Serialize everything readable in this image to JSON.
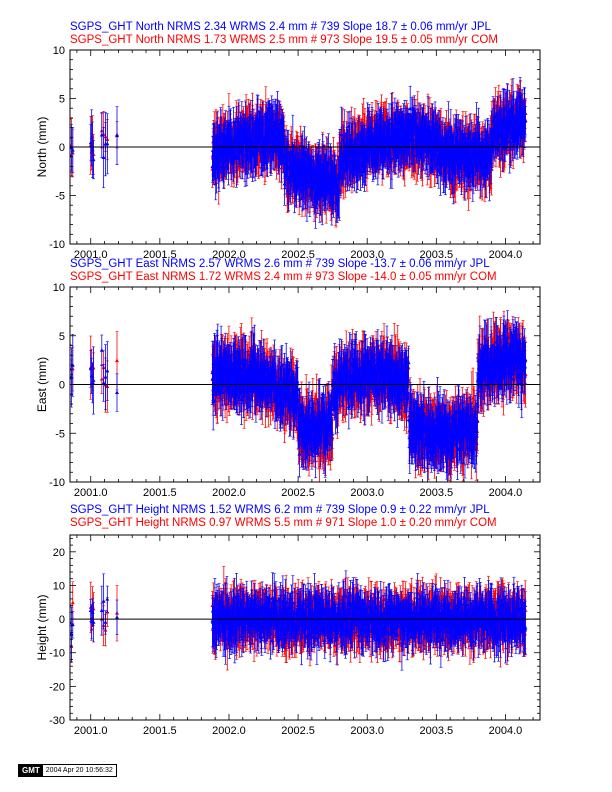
{
  "chart_data": [
    {
      "type": "scatter",
      "ylabel": "North (mm)",
      "ylim": [
        -10,
        10
      ],
      "yticks": [
        -10,
        -5,
        0,
        5,
        10
      ],
      "xlim": [
        2000.85,
        2004.25
      ],
      "xticks": [
        2001.0,
        2001.5,
        2002.0,
        2002.5,
        2003.0,
        2003.5,
        2004.0
      ],
      "xtick_labels": [
        "2001.0",
        "2001.5",
        "2002.0",
        "2002.5",
        "2003.0",
        "2003.5",
        "2004.0"
      ],
      "zero_line": true,
      "legend": [
        {
          "text": "SGPS_GHT North NRMS 2.34 WRMS  2.4 mm # 739 Slope   18.7 ±  0.06 mm/yr JPL",
          "color": "#0000ff"
        },
        {
          "text": "SGPS_GHT North NRMS 1.73 WRMS  2.5 mm # 973 Slope   19.5 ±  0.05 mm/yr COM",
          "color": "#ff0000"
        }
      ],
      "series": [
        {
          "name": "JPL",
          "color": "#0000ff",
          "n": 739,
          "wrms": 2.4,
          "slope": 18.7
        },
        {
          "name": "COM",
          "color": "#ff0000",
          "n": 973,
          "wrms": 2.5,
          "slope": 19.5
        }
      ]
    },
    {
      "type": "scatter",
      "ylabel": "East (mm)",
      "ylim": [
        -10,
        10
      ],
      "yticks": [
        -10,
        -5,
        0,
        5,
        10
      ],
      "xlim": [
        2000.85,
        2004.25
      ],
      "xticks": [
        2001.0,
        2001.5,
        2002.0,
        2002.5,
        2003.0,
        2003.5,
        2004.0
      ],
      "xtick_labels": [
        "2001.0",
        "2001.5",
        "2002.0",
        "2002.5",
        "2003.0",
        "2003.5",
        "2004.0"
      ],
      "zero_line": true,
      "legend": [
        {
          "text": "SGPS_GHT East NRMS 2.57 WRMS  2.6 mm # 739 Slope  -13.7 ±  0.06 mm/yr JPL",
          "color": "#0000ff"
        },
        {
          "text": "SGPS_GHT East NRMS 1.72 WRMS  2.4 mm # 973 Slope  -14.0 ±  0.05 mm/yr COM",
          "color": "#ff0000"
        }
      ],
      "series": [
        {
          "name": "JPL",
          "color": "#0000ff",
          "n": 739,
          "wrms": 2.6,
          "slope": -13.7
        },
        {
          "name": "COM",
          "color": "#ff0000",
          "n": 973,
          "wrms": 2.4,
          "slope": -14.0
        }
      ]
    },
    {
      "type": "scatter",
      "ylabel": "Height (mm)",
      "ylim": [
        -30,
        25
      ],
      "yticks": [
        -30,
        -20,
        -10,
        0,
        10,
        20
      ],
      "xlim": [
        2000.85,
        2004.25
      ],
      "xticks": [
        2001.0,
        2001.5,
        2002.0,
        2002.5,
        2003.0,
        2003.5,
        2004.0
      ],
      "xtick_labels": [
        "2001.0",
        "2001.5",
        "2002.0",
        "2002.5",
        "2003.0",
        "2003.5",
        "2004.0"
      ],
      "zero_line": true,
      "legend": [
        {
          "text": "SGPS_GHT Height NRMS 1.52 WRMS  6.2 mm # 739 Slope    0.9 ±  0.22 mm/yr JPL",
          "color": "#0000ff"
        },
        {
          "text": "SGPS_GHT Height NRMS 0.97 WRMS  5.5 mm # 971 Slope    1.0 ±  0.20 mm/yr COM",
          "color": "#ff0000"
        }
      ],
      "series": [
        {
          "name": "JPL",
          "color": "#0000ff",
          "n": 739,
          "wrms": 6.2,
          "slope": 0.9
        },
        {
          "name": "COM",
          "color": "#ff0000",
          "n": 971,
          "wrms": 5.5,
          "slope": 1.0
        }
      ]
    }
  ],
  "stamp": {
    "logo": "GMT",
    "timestamp": "2004 Apr 20 10:56:32"
  }
}
